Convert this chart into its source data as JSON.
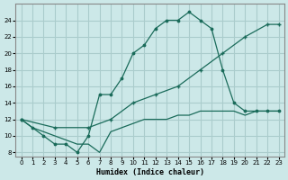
{
  "title": "",
  "xlabel": "Humidex (Indice chaleur)",
  "ylabel": "",
  "bg_color": "#cce8e8",
  "grid_color": "#aacccc",
  "line_color": "#1a6b5a",
  "x_ticks": [
    0,
    1,
    2,
    3,
    4,
    5,
    6,
    7,
    8,
    9,
    10,
    11,
    12,
    13,
    14,
    15,
    16,
    17,
    18,
    19,
    20,
    21,
    22,
    23
  ],
  "y_ticks": [
    8,
    10,
    12,
    14,
    16,
    18,
    20,
    22,
    24
  ],
  "xlim": [
    -0.5,
    23.5
  ],
  "ylim": [
    7.5,
    26
  ],
  "line1_x": [
    0,
    1,
    2,
    3,
    4,
    5,
    6,
    7,
    8,
    9,
    10,
    11,
    12,
    13,
    14,
    15,
    16,
    17,
    18,
    19,
    20,
    21,
    22,
    23
  ],
  "line1_y": [
    12,
    11,
    10,
    9,
    9,
    8,
    10,
    15,
    15,
    17,
    20,
    21,
    23,
    24,
    24,
    25,
    24,
    23,
    18,
    14,
    13,
    13,
    13,
    13
  ],
  "line2_x": [
    0,
    3,
    6,
    8,
    10,
    12,
    14,
    16,
    18,
    20,
    22,
    23
  ],
  "line2_y": [
    12,
    11,
    11,
    12,
    14,
    15,
    16,
    18,
    20,
    22,
    23.5,
    23.5
  ],
  "line3_x": [
    0,
    1,
    2,
    3,
    4,
    5,
    6,
    7,
    8,
    9,
    10,
    11,
    12,
    13,
    14,
    15,
    16,
    17,
    18,
    19,
    20,
    21,
    22,
    23
  ],
  "line3_y": [
    12,
    11,
    10.5,
    10,
    9.5,
    9,
    9,
    8,
    10.5,
    11,
    11.5,
    12,
    12,
    12,
    12.5,
    12.5,
    13,
    13,
    13,
    13,
    12.5,
    13,
    13,
    13
  ]
}
